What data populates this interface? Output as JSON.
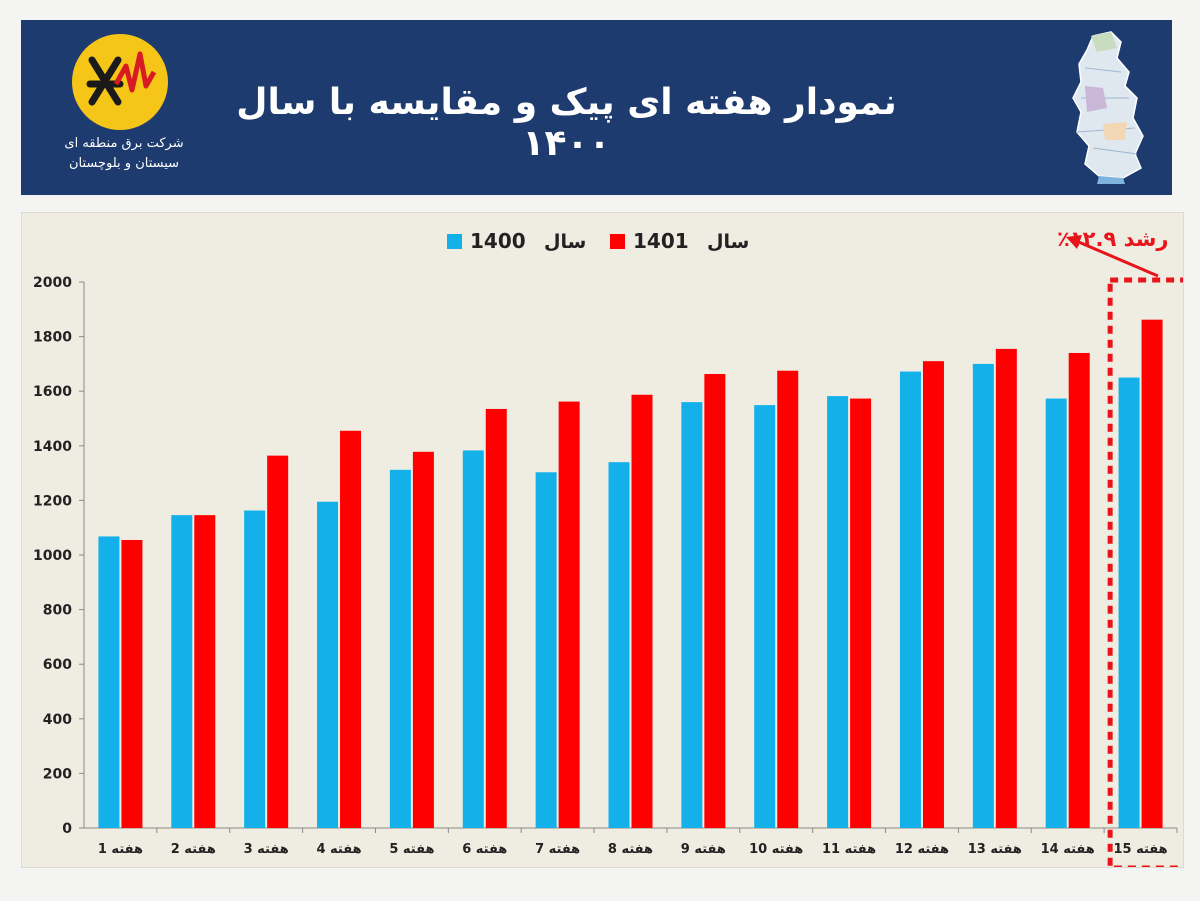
{
  "header": {
    "title": "نمودار هفته ای پیک و مقایسه با سال ۱۴۰۰",
    "company_line1": "شرکت برق منطقه ای",
    "company_line2": "سیستان و بلوچستان",
    "background_color": "#1d3b6e"
  },
  "annotation": {
    "text": "رشد ۱۲.۹٪",
    "color": "#e8141a"
  },
  "chart_data": {
    "type": "bar",
    "categories": [
      "هفته 1",
      "هفته 2",
      "هفته 3",
      "هفته 4",
      "هفته 5",
      "هفته 6",
      "هفته 7",
      "هفته 8",
      "هفته 9",
      "هفته 10",
      "هفته 11",
      "هفته 12",
      "هفته 13",
      "هفته 14",
      "هفته 15"
    ],
    "series": [
      {
        "name": "سال 1400",
        "legend_prefix": "سال",
        "legend_year": "1400",
        "color": "#14b0ea",
        "values": [
          1068,
          1146,
          1163,
          1195,
          1312,
          1383,
          1303,
          1340,
          1560,
          1549,
          1582,
          1672,
          1700,
          1573,
          1650
        ]
      },
      {
        "name": "سال 1401",
        "legend_prefix": "سال",
        "legend_year": "1401",
        "color": "#ff0000",
        "values": [
          1055,
          1146,
          1364,
          1455,
          1378,
          1535,
          1562,
          1587,
          1663,
          1675,
          1573,
          1710,
          1755,
          1740,
          1862
        ]
      }
    ],
    "ylim": [
      0,
      2000
    ],
    "yticks": [
      "0",
      "200",
      "400",
      "600",
      "800",
      "1000",
      "1200",
      "1400",
      "1600",
      "1800",
      "2000"
    ],
    "highlight_category_index": 14,
    "grid": false,
    "legend_position": "top"
  }
}
